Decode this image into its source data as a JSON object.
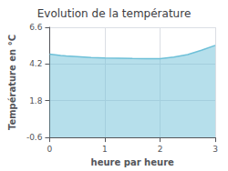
{
  "chart_data": {
    "type": "area",
    "title": "Evolution de la température",
    "xlabel": "heure par heure",
    "ylabel": "Température en °C",
    "x": [
      0,
      0.1,
      0.2,
      0.3,
      0.5,
      0.75,
      1.0,
      1.25,
      1.5,
      1.75,
      2.0,
      2.25,
      2.5,
      2.75,
      3.0
    ],
    "values": [
      4.85,
      4.8,
      4.75,
      4.72,
      4.68,
      4.63,
      4.6,
      4.58,
      4.56,
      4.55,
      4.55,
      4.65,
      4.82,
      5.1,
      5.42
    ],
    "color": "#6ec0d8",
    "xlim": [
      0,
      3
    ],
    "xticks": [
      0,
      1,
      2,
      3
    ],
    "ylim": [
      -0.6,
      6.6
    ],
    "yticks": [
      -0.6,
      1.8,
      4.2,
      6.6
    ],
    "grid": true
  }
}
